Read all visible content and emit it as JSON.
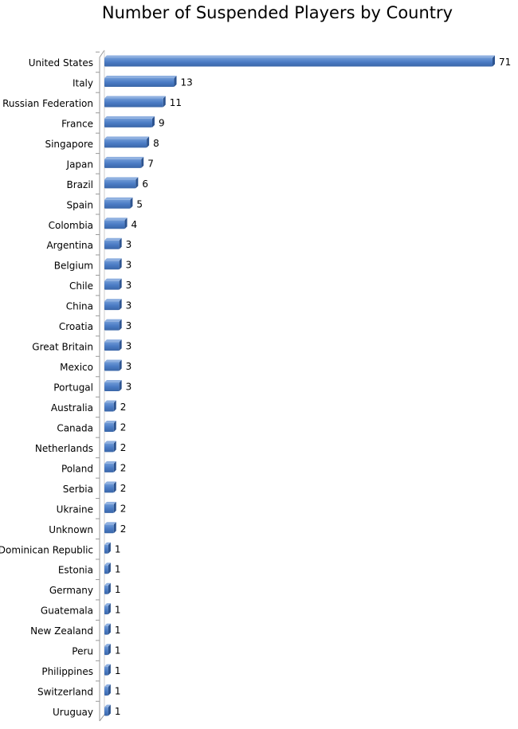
{
  "chart_data": {
    "type": "bar",
    "orientation": "horizontal",
    "title": "Number of Suspended Players by Country",
    "xlabel": "",
    "ylabel": "",
    "xlim": [
      0,
      71
    ],
    "grid": false,
    "bar_color": "#4a7bc4",
    "categories": [
      "United States",
      "Italy",
      "Russian Federation",
      "France",
      "Singapore",
      "Japan",
      "Brazil",
      "Spain",
      "Colombia",
      "Argentina",
      "Belgium",
      "Chile",
      "China",
      "Croatia",
      "Great Britain",
      "Mexico",
      "Portugal",
      "Australia",
      "Canada",
      "Netherlands",
      "Poland",
      "Serbia",
      "Ukraine",
      "Unknown",
      "Dominican Republic",
      "Estonia",
      "Germany",
      "Guatemala",
      "New Zealand",
      "Peru",
      "Philippines",
      "Switzerland",
      "Uruguay"
    ],
    "values": [
      71,
      13,
      11,
      9,
      8,
      7,
      6,
      5,
      4,
      3,
      3,
      3,
      3,
      3,
      3,
      3,
      3,
      2,
      2,
      2,
      2,
      2,
      2,
      2,
      1,
      1,
      1,
      1,
      1,
      1,
      1,
      1,
      1
    ]
  }
}
